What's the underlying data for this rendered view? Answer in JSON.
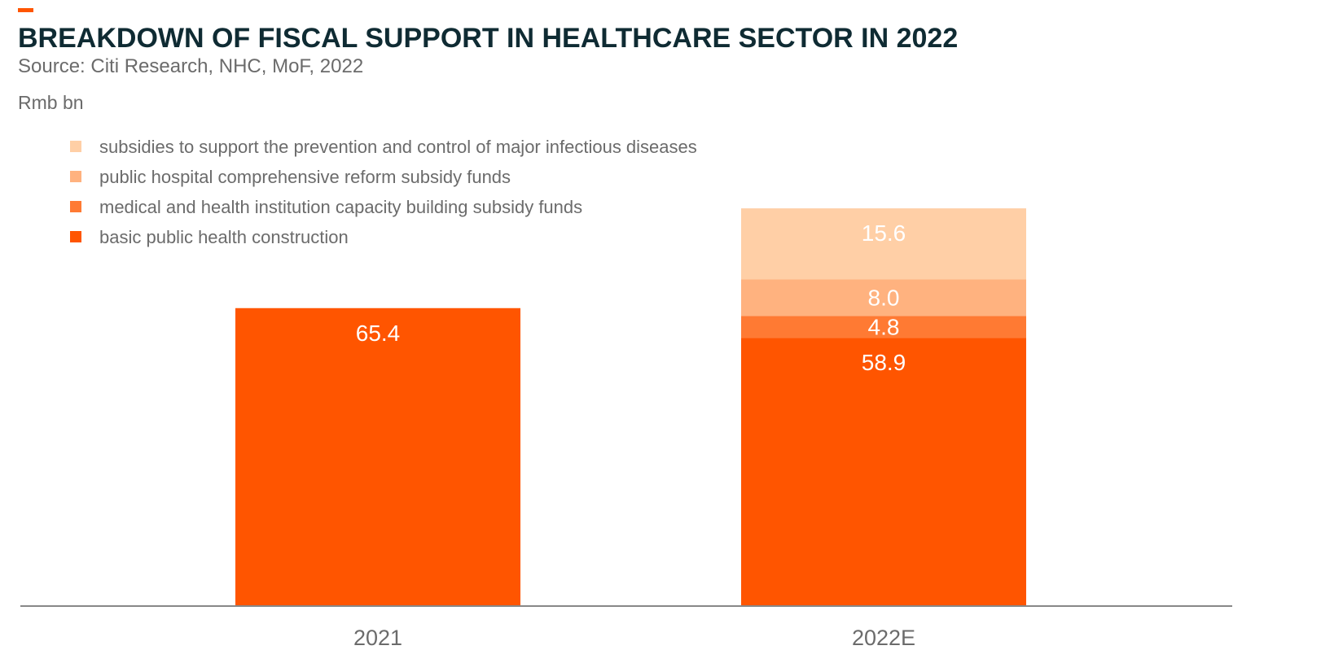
{
  "header": {
    "title": "BREAKDOWN OF FISCAL SUPPORT IN HEALTHCARE SECTOR IN 2022",
    "source": "Source: Citi Research, NHC, MoF, 2022",
    "unit": "Rmb bn"
  },
  "colors": {
    "accent": "#ff5500",
    "axis": "#888888"
  },
  "chart_data": {
    "type": "bar",
    "stacked": true,
    "title": "BREAKDOWN OF FISCAL SUPPORT IN HEALTHCARE SECTOR IN 2022",
    "ylabel": "Rmb bn",
    "xlabel": "",
    "categories": [
      "2021",
      "2022E"
    ],
    "ylim": [
      0,
      110
    ],
    "grid": false,
    "legend_position": "top-left",
    "series": [
      {
        "name": "basic public health construction",
        "values": [
          65.4,
          58.9
        ],
        "labels": [
          "65.4",
          "58.9"
        ],
        "color": "#ff5500"
      },
      {
        "name": "medical and health institution capacity building subsidy funds",
        "values": [
          0,
          4.8
        ],
        "labels": [
          "",
          "4.8"
        ],
        "color": "#ff7a33"
      },
      {
        "name": "public hospital comprehensive reform subsidy funds",
        "values": [
          0,
          8.0
        ],
        "labels": [
          "",
          "8.0"
        ],
        "color": "#ffb27f"
      },
      {
        "name": "subsidies to support the prevention and control of major infectious diseases",
        "values": [
          0,
          15.6
        ],
        "labels": [
          "",
          "15.6"
        ],
        "color": "#ffcfa6"
      }
    ]
  }
}
